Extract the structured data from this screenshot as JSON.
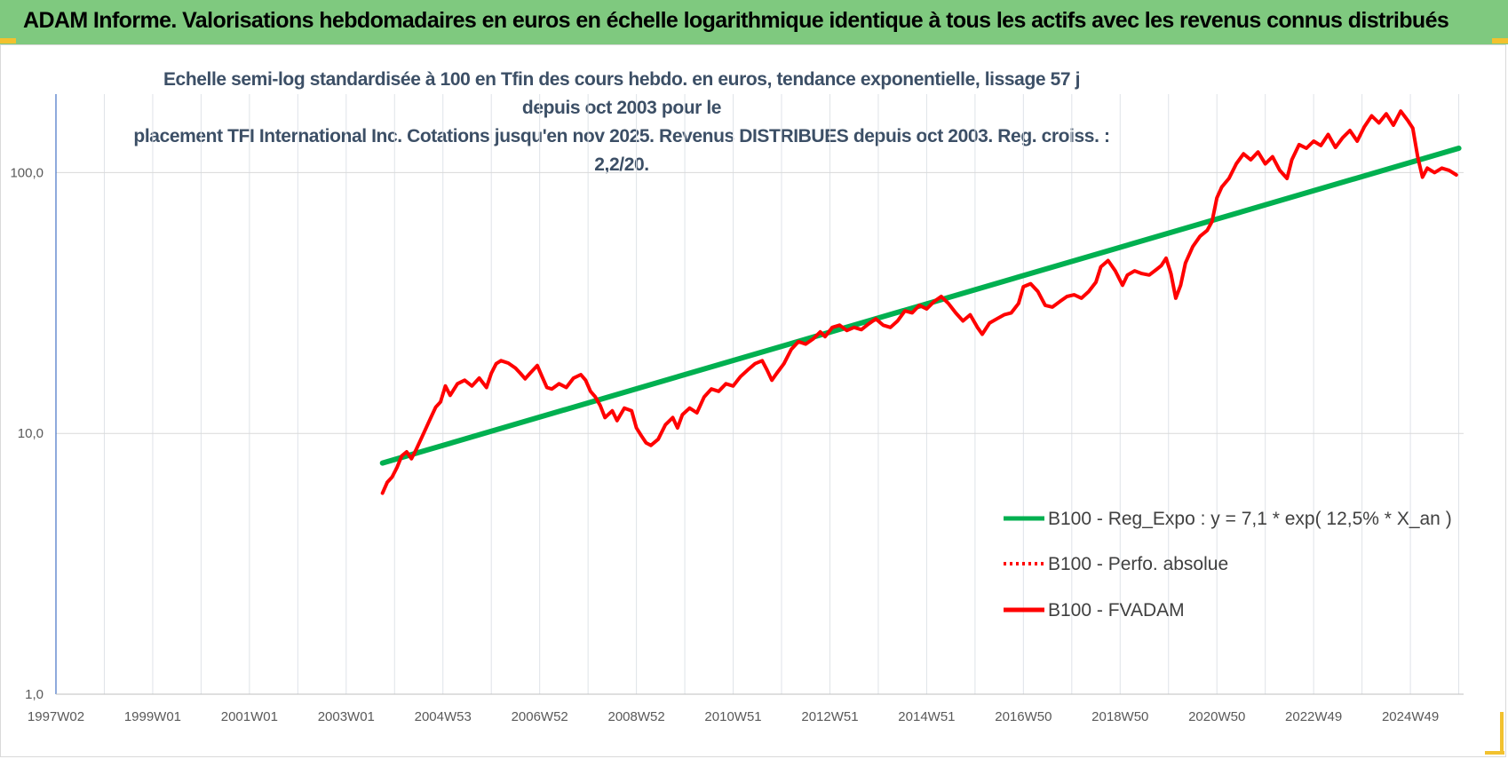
{
  "header": {
    "title": "ADAM Informe. Valorisations hebdomadaires en euros en échelle logarithmique identique à tous les actifs avec les revenus connus distribués"
  },
  "colors": {
    "header_bg": "#7fc97f",
    "trend": "#00b050",
    "price": "#ff0000",
    "corner_accent": "#f2c12e"
  },
  "chart_data": {
    "type": "line",
    "title_lines": [
      "Echelle semi-log standardisée à 100 en Tfin des cours hebdo. en euros, tendance exponentielle, lissage 57 j depuis oct 2003 pour le",
      "placement TFI International Inc. Cotations jusqu'en nov 2025. Revenus DISTRIBUES depuis oct 2003. Reg. croiss. : 2,2/20."
    ],
    "yscale": "log",
    "ylim": [
      1,
      200
    ],
    "y_ticks": [
      {
        "value": 1,
        "label": "1,0"
      },
      {
        "value": 10,
        "label": "10,0"
      },
      {
        "value": 100,
        "label": "100,0"
      }
    ],
    "xlim": [
      1997.0,
      2026.1
    ],
    "x_ticks": [
      {
        "x": 1997.0,
        "label": "1997W02"
      },
      {
        "x": 1999.0,
        "label": "1999W01"
      },
      {
        "x": 2001.0,
        "label": "2001W01"
      },
      {
        "x": 2003.0,
        "label": "2003W01"
      },
      {
        "x": 2005.0,
        "label": "2004W53"
      },
      {
        "x": 2007.0,
        "label": "2006W52"
      },
      {
        "x": 2009.0,
        "label": "2008W52"
      },
      {
        "x": 2011.0,
        "label": "2010W51"
      },
      {
        "x": 2013.0,
        "label": "2012W51"
      },
      {
        "x": 2015.0,
        "label": "2014W51"
      },
      {
        "x": 2017.0,
        "label": "2016W50"
      },
      {
        "x": 2019.0,
        "label": "2018W50"
      },
      {
        "x": 2021.0,
        "label": "2020W50"
      },
      {
        "x": 2023.0,
        "label": "2022W49"
      },
      {
        "x": 2025.0,
        "label": "2024W49"
      }
    ],
    "grid": true,
    "legend_position": "bottom-right",
    "series": [
      {
        "name": "B100 - Reg_Expo : y = 7,1 * exp( 12,5% *  X_an )",
        "style": "solid-thick",
        "color": "#00b050",
        "points": [
          [
            2003.75,
            7.7
          ],
          [
            2026.0,
            124
          ]
        ]
      },
      {
        "name": "B100 - Perfo. absolue",
        "style": "dotted",
        "color": "#ff0000",
        "points": []
      },
      {
        "name": "B100 - FVADAM",
        "style": "solid",
        "color": "#ff0000",
        "points": [
          [
            2003.75,
            5.9
          ],
          [
            2003.85,
            6.5
          ],
          [
            2003.95,
            6.8
          ],
          [
            2004.05,
            7.4
          ],
          [
            2004.15,
            8.2
          ],
          [
            2004.25,
            8.5
          ],
          [
            2004.35,
            8.0
          ],
          [
            2004.45,
            8.7
          ],
          [
            2004.6,
            10.0
          ],
          [
            2004.75,
            11.5
          ],
          [
            2004.85,
            12.6
          ],
          [
            2004.95,
            13.2
          ],
          [
            2005.05,
            15.2
          ],
          [
            2005.15,
            14.0
          ],
          [
            2005.3,
            15.5
          ],
          [
            2005.45,
            16.0
          ],
          [
            2005.6,
            15.2
          ],
          [
            2005.75,
            16.3
          ],
          [
            2005.9,
            15.0
          ],
          [
            2006.0,
            17.0
          ],
          [
            2006.1,
            18.5
          ],
          [
            2006.2,
            19.0
          ],
          [
            2006.35,
            18.6
          ],
          [
            2006.5,
            17.8
          ],
          [
            2006.6,
            17.0
          ],
          [
            2006.7,
            16.2
          ],
          [
            2006.8,
            17.0
          ],
          [
            2006.95,
            18.2
          ],
          [
            2007.05,
            16.5
          ],
          [
            2007.15,
            15.0
          ],
          [
            2007.25,
            14.8
          ],
          [
            2007.4,
            15.5
          ],
          [
            2007.55,
            15.0
          ],
          [
            2007.7,
            16.3
          ],
          [
            2007.85,
            16.8
          ],
          [
            2007.95,
            16.0
          ],
          [
            2008.05,
            14.5
          ],
          [
            2008.15,
            13.8
          ],
          [
            2008.25,
            12.8
          ],
          [
            2008.35,
            11.5
          ],
          [
            2008.5,
            12.2
          ],
          [
            2008.6,
            11.2
          ],
          [
            2008.75,
            12.5
          ],
          [
            2008.9,
            12.2
          ],
          [
            2009.0,
            10.5
          ],
          [
            2009.1,
            9.8
          ],
          [
            2009.2,
            9.2
          ],
          [
            2009.3,
            9.0
          ],
          [
            2009.45,
            9.5
          ],
          [
            2009.6,
            10.8
          ],
          [
            2009.75,
            11.5
          ],
          [
            2009.85,
            10.5
          ],
          [
            2009.95,
            11.8
          ],
          [
            2010.1,
            12.5
          ],
          [
            2010.25,
            12.0
          ],
          [
            2010.4,
            13.8
          ],
          [
            2010.55,
            14.8
          ],
          [
            2010.7,
            14.5
          ],
          [
            2010.85,
            15.5
          ],
          [
            2011.0,
            15.2
          ],
          [
            2011.15,
            16.5
          ],
          [
            2011.3,
            17.5
          ],
          [
            2011.45,
            18.5
          ],
          [
            2011.6,
            19.0
          ],
          [
            2011.7,
            17.5
          ],
          [
            2011.8,
            16.0
          ],
          [
            2011.9,
            17.0
          ],
          [
            2012.05,
            18.5
          ],
          [
            2012.2,
            21.0
          ],
          [
            2012.35,
            22.5
          ],
          [
            2012.5,
            22.0
          ],
          [
            2012.65,
            23.0
          ],
          [
            2012.8,
            24.5
          ],
          [
            2012.9,
            23.5
          ],
          [
            2013.05,
            25.5
          ],
          [
            2013.2,
            26.0
          ],
          [
            2013.35,
            24.8
          ],
          [
            2013.5,
            25.5
          ],
          [
            2013.65,
            25.0
          ],
          [
            2013.8,
            26.3
          ],
          [
            2013.95,
            27.5
          ],
          [
            2014.1,
            26.0
          ],
          [
            2014.25,
            25.5
          ],
          [
            2014.4,
            27.0
          ],
          [
            2014.55,
            29.5
          ],
          [
            2014.7,
            29.0
          ],
          [
            2014.85,
            31.0
          ],
          [
            2015.0,
            30.0
          ],
          [
            2015.15,
            32.0
          ],
          [
            2015.3,
            33.5
          ],
          [
            2015.45,
            31.5
          ],
          [
            2015.6,
            29.0
          ],
          [
            2015.75,
            27.0
          ],
          [
            2015.9,
            28.5
          ],
          [
            2016.05,
            25.5
          ],
          [
            2016.15,
            24.0
          ],
          [
            2016.3,
            26.5
          ],
          [
            2016.45,
            27.5
          ],
          [
            2016.6,
            28.5
          ],
          [
            2016.75,
            29.0
          ],
          [
            2016.9,
            31.5
          ],
          [
            2017.0,
            36.5
          ],
          [
            2017.15,
            37.5
          ],
          [
            2017.3,
            35.0
          ],
          [
            2017.45,
            31.0
          ],
          [
            2017.6,
            30.5
          ],
          [
            2017.75,
            32.0
          ],
          [
            2017.9,
            33.5
          ],
          [
            2018.05,
            34.0
          ],
          [
            2018.2,
            33.0
          ],
          [
            2018.35,
            35.0
          ],
          [
            2018.5,
            38.0
          ],
          [
            2018.6,
            43.5
          ],
          [
            2018.75,
            46.0
          ],
          [
            2018.9,
            42.0
          ],
          [
            2019.05,
            37.0
          ],
          [
            2019.15,
            40.5
          ],
          [
            2019.3,
            42.0
          ],
          [
            2019.45,
            41.0
          ],
          [
            2019.6,
            40.5
          ],
          [
            2019.75,
            42.5
          ],
          [
            2019.85,
            44.0
          ],
          [
            2019.95,
            47.0
          ],
          [
            2020.05,
            41.0
          ],
          [
            2020.15,
            33.0
          ],
          [
            2020.25,
            37.0
          ],
          [
            2020.35,
            45.0
          ],
          [
            2020.5,
            52.0
          ],
          [
            2020.65,
            57.0
          ],
          [
            2020.8,
            60.0
          ],
          [
            2020.9,
            65.0
          ],
          [
            2021.0,
            80.0
          ],
          [
            2021.1,
            88.0
          ],
          [
            2021.25,
            95.0
          ],
          [
            2021.4,
            108.0
          ],
          [
            2021.55,
            118.0
          ],
          [
            2021.7,
            112.0
          ],
          [
            2021.85,
            120.0
          ],
          [
            2022.0,
            108.0
          ],
          [
            2022.15,
            115.0
          ],
          [
            2022.3,
            102.0
          ],
          [
            2022.45,
            95.0
          ],
          [
            2022.55,
            112.0
          ],
          [
            2022.7,
            128.0
          ],
          [
            2022.85,
            124.0
          ],
          [
            2023.0,
            132.0
          ],
          [
            2023.15,
            127.0
          ],
          [
            2023.3,
            140.0
          ],
          [
            2023.45,
            125.0
          ],
          [
            2023.6,
            136.0
          ],
          [
            2023.75,
            145.0
          ],
          [
            2023.9,
            132.0
          ],
          [
            2024.05,
            150.0
          ],
          [
            2024.2,
            165.0
          ],
          [
            2024.35,
            155.0
          ],
          [
            2024.5,
            168.0
          ],
          [
            2024.65,
            152.0
          ],
          [
            2024.8,
            172.0
          ],
          [
            2024.95,
            158.0
          ],
          [
            2025.05,
            148.0
          ],
          [
            2025.15,
            115.0
          ],
          [
            2025.25,
            96.0
          ],
          [
            2025.35,
            104.0
          ],
          [
            2025.5,
            100.0
          ],
          [
            2025.65,
            104.0
          ],
          [
            2025.8,
            102.0
          ],
          [
            2025.95,
            98.0
          ]
        ]
      }
    ]
  }
}
